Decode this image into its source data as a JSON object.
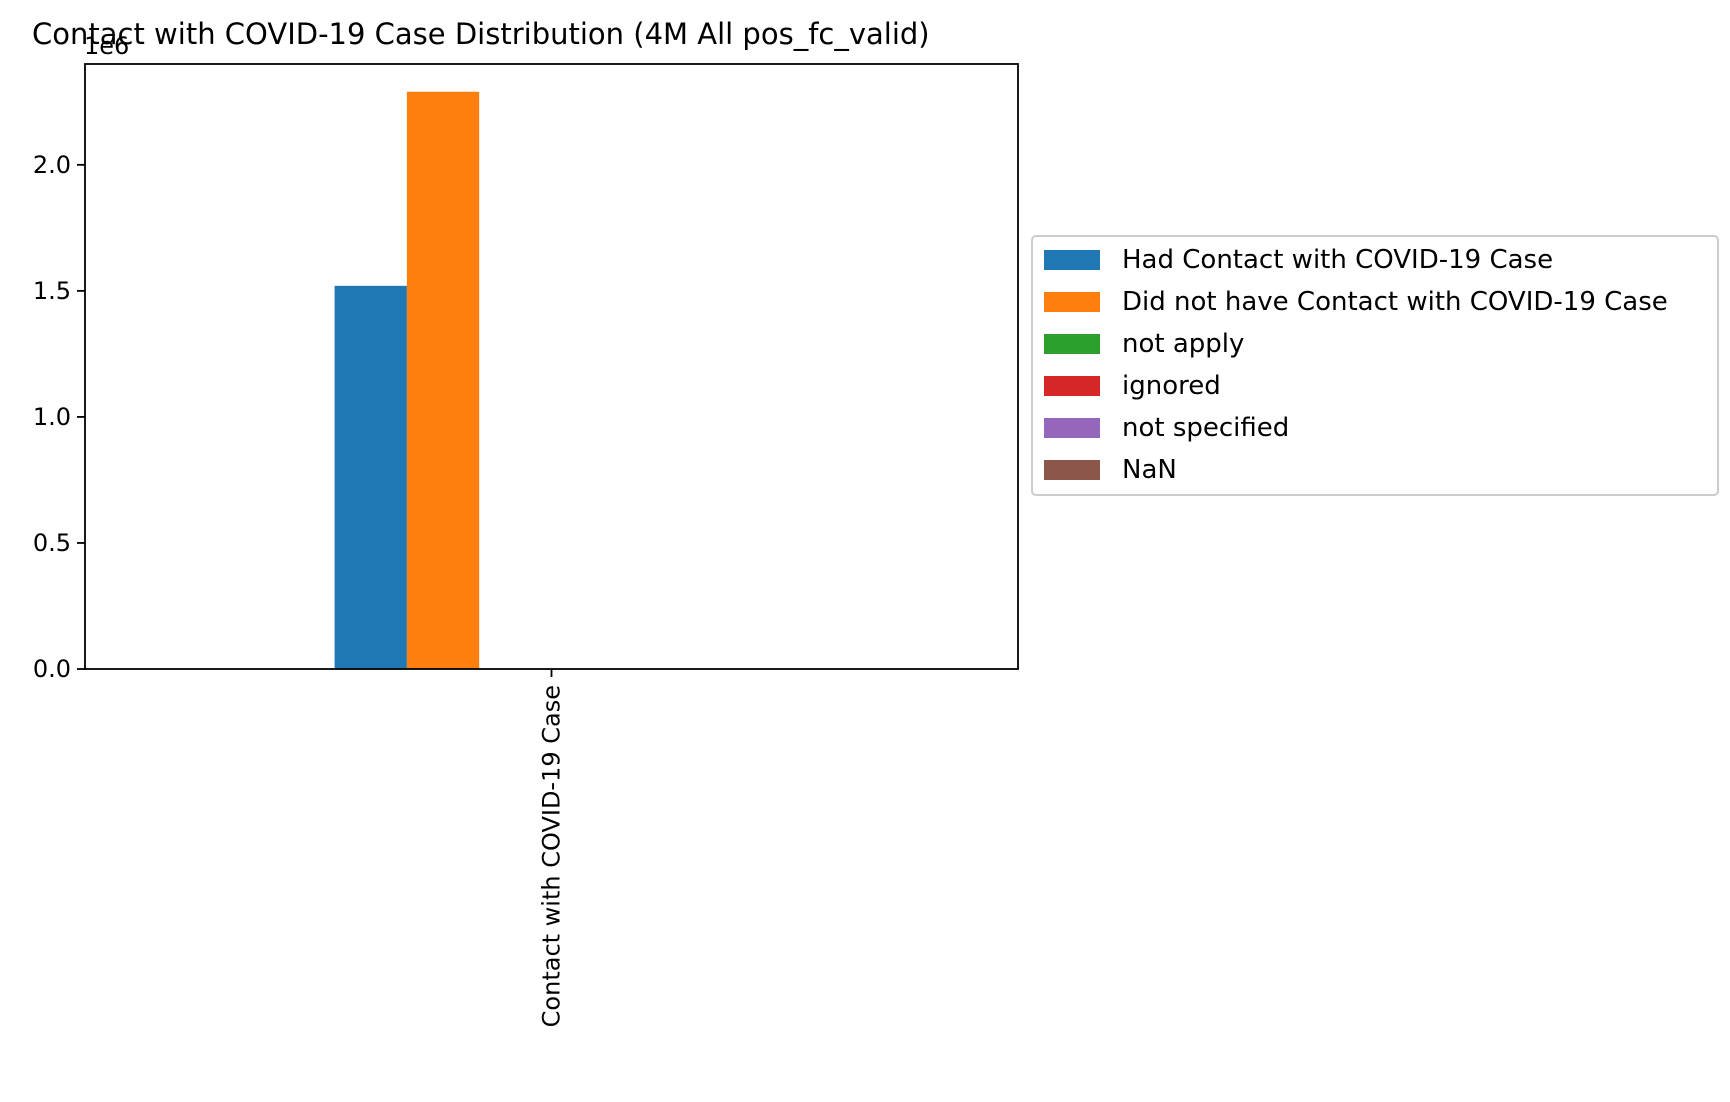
{
  "chart_data": {
    "type": "bar",
    "title": "Contact with COVID-19 Case Distribution (4M All pos_fc_valid)",
    "categories": [
      "Contact with COVID-19 Case"
    ],
    "xlabel": "",
    "ylabel": "",
    "y_offset_label": "1e6",
    "ylim": [
      0,
      2.4
    ],
    "y_ticks": [
      0.0,
      0.5,
      1.0,
      1.5,
      2.0
    ],
    "y_tick_labels": [
      "0.0",
      "0.5",
      "1.0",
      "1.5",
      "2.0"
    ],
    "grid": false,
    "legend_position": "right",
    "series": [
      {
        "name": "Had Contact with COVID-19 Case",
        "color": "#1f77b4",
        "values": [
          1.52
        ]
      },
      {
        "name": "Did not have Contact with COVID-19 Case",
        "color": "#ff7f0e",
        "values": [
          2.29
        ]
      },
      {
        "name": "not apply",
        "color": "#2ca02c",
        "values": [
          0
        ]
      },
      {
        "name": "ignored",
        "color": "#d62728",
        "values": [
          0
        ]
      },
      {
        "name": "not specified",
        "color": "#9467bd",
        "values": [
          0
        ]
      },
      {
        "name": "NaN",
        "color": "#8c564b",
        "values": [
          0
        ]
      }
    ]
  }
}
